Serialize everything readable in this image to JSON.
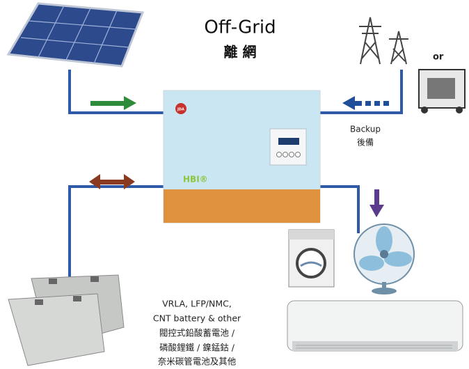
{
  "header": {
    "title": "Off-Grid",
    "subtitle": "離 網"
  },
  "labels": {
    "or": "or",
    "backup": "Backup",
    "backup_zh": "後備",
    "logo": "JDA",
    "brand": "HBI®"
  },
  "battery_text": [
    "VRLA, LFP/NMC,",
    "CNT battery & other",
    "閥控式鉛酸蓄電池 /",
    "磷酸鋰鐵 / 鎳錳鈷 /",
    "奈米碳管電池及其他"
  ]
}
